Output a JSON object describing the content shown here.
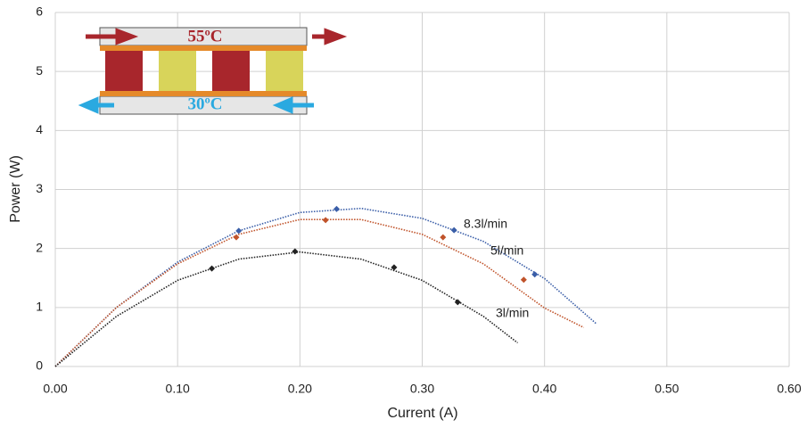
{
  "chart_data": {
    "type": "scatter",
    "x_label": "Current (A)",
    "y_label": "Power (W)",
    "xlim": [
      0,
      0.6
    ],
    "ylim": [
      0,
      6
    ],
    "xticks": [
      {
        "value": 0,
        "label": "0.00"
      },
      {
        "value": 0.1,
        "label": "0.10"
      },
      {
        "value": 0.2,
        "label": "0.20"
      },
      {
        "value": 0.3,
        "label": "0.30"
      },
      {
        "value": 0.4,
        "label": "0.40"
      },
      {
        "value": 0.5,
        "label": "0.50"
      },
      {
        "value": 0.6,
        "label": "0.60"
      }
    ],
    "yticks": [
      0,
      1,
      2,
      3,
      4,
      5,
      6
    ],
    "grid": true,
    "inset_labels": {
      "hot": "55ºC",
      "cold": "30ºC"
    },
    "series": [
      {
        "name": "8.3l/min",
        "color": "#3a5ea8",
        "x": [
          0.15,
          0.23,
          0.326,
          0.392
        ],
        "values": [
          2.3,
          2.67,
          2.31,
          1.56
        ],
        "trend": {
          "x": [
            0,
            0.05,
            0.1,
            0.15,
            0.2,
            0.25,
            0.3,
            0.35,
            0.4,
            0.442
          ],
          "values": [
            0,
            1.0,
            1.77,
            2.3,
            2.61,
            2.68,
            2.51,
            2.12,
            1.49,
            0.73
          ]
        }
      },
      {
        "name": "5l/min",
        "color": "#c0532a",
        "x": [
          0.148,
          0.221,
          0.317,
          0.383
        ],
        "values": [
          2.19,
          2.48,
          2.19,
          1.47
        ],
        "trend": {
          "x": [
            0,
            0.05,
            0.1,
            0.15,
            0.2,
            0.25,
            0.3,
            0.35,
            0.4,
            0.432
          ],
          "values": [
            0,
            1.0,
            1.74,
            2.24,
            2.49,
            2.49,
            2.24,
            1.74,
            0.99,
            0.66
          ]
        }
      },
      {
        "name": "3l/min",
        "color": "#222222",
        "x": [
          0.128,
          0.196,
          0.277,
          0.329
        ],
        "values": [
          1.66,
          1.95,
          1.68,
          1.09
        ],
        "trend": {
          "x": [
            0,
            0.05,
            0.1,
            0.15,
            0.2,
            0.25,
            0.3,
            0.35,
            0.378
          ],
          "values": [
            0,
            0.85,
            1.46,
            1.82,
            1.94,
            1.82,
            1.46,
            0.85,
            0.4
          ]
        }
      }
    ]
  }
}
